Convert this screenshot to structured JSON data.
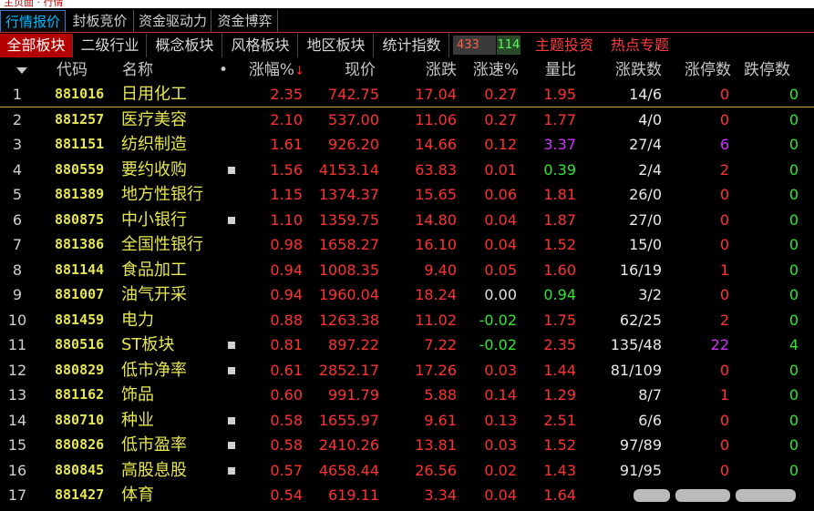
{
  "titlebar": {
    "text": "主页面 · 行情"
  },
  "top_tabs": [
    "行情报价",
    "封板竞价",
    "资金驱动力",
    "资金博弈"
  ],
  "sector_tabs": [
    "全部板块",
    "二级行业",
    "概念板块",
    "风格板块",
    "地区板块",
    "统计指数"
  ],
  "counter": {
    "up": "433",
    "down": "114"
  },
  "hot_tabs": [
    "主题投资",
    "热点专题"
  ],
  "columns": {
    "code": "代码",
    "name": "名称",
    "dot": "•",
    "pct": "涨幅%",
    "pct_arrow": "↓",
    "price": "现价",
    "change": "涨跌",
    "speed": "涨速%",
    "vol_ratio": "量比",
    "updown": "涨跌数",
    "limit_up": "涨停数",
    "limit_down": "跌停数"
  },
  "colors": {
    "up": "#ff3232",
    "down": "#32e632",
    "flat": "#e0e0e0",
    "highlight": "#d232ff",
    "name": "#e6e650",
    "active_tab": "#b40000"
  },
  "rows": [
    {
      "idx": "1",
      "code": "881016",
      "name": "日用化工",
      "dot": false,
      "pct": "2.35",
      "price": "742.75",
      "change": "17.04",
      "speed": "0.27",
      "vr": "1.95",
      "ud": "14/6",
      "zt": "0",
      "dt": "0",
      "speed_c": "red",
      "vr_c": "red",
      "zt_c": "red"
    },
    {
      "idx": "2",
      "code": "881257",
      "name": "医疗美容",
      "dot": false,
      "pct": "2.10",
      "price": "537.00",
      "change": "11.06",
      "speed": "0.27",
      "vr": "1.77",
      "ud": "4/0",
      "zt": "0",
      "dt": "0",
      "speed_c": "red",
      "vr_c": "red",
      "zt_c": "red"
    },
    {
      "idx": "3",
      "code": "881151",
      "name": "纺织制造",
      "dot": false,
      "pct": "1.61",
      "price": "926.20",
      "change": "14.66",
      "speed": "0.12",
      "vr": "3.37",
      "ud": "27/4",
      "zt": "6",
      "dt": "0",
      "speed_c": "red",
      "vr_c": "purple",
      "zt_c": "purple"
    },
    {
      "idx": "4",
      "code": "880559",
      "name": "要约收购",
      "dot": true,
      "pct": "1.56",
      "price": "4153.14",
      "change": "63.83",
      "speed": "0.01",
      "vr": "0.39",
      "ud": "2/4",
      "zt": "2",
      "dt": "0",
      "speed_c": "red",
      "vr_c": "green",
      "zt_c": "red"
    },
    {
      "idx": "5",
      "code": "881389",
      "name": "地方性银行",
      "dot": false,
      "pct": "1.15",
      "price": "1374.37",
      "change": "15.65",
      "speed": "0.06",
      "vr": "1.81",
      "ud": "26/0",
      "zt": "0",
      "dt": "0",
      "speed_c": "red",
      "vr_c": "red",
      "zt_c": "red"
    },
    {
      "idx": "6",
      "code": "880875",
      "name": "中小银行",
      "dot": true,
      "pct": "1.10",
      "price": "1359.75",
      "change": "14.80",
      "speed": "0.04",
      "vr": "1.87",
      "ud": "27/0",
      "zt": "0",
      "dt": "0",
      "speed_c": "red",
      "vr_c": "red",
      "zt_c": "red"
    },
    {
      "idx": "7",
      "code": "881386",
      "name": "全国性银行",
      "dot": false,
      "pct": "0.98",
      "price": "1658.27",
      "change": "16.10",
      "speed": "0.04",
      "vr": "1.52",
      "ud": "15/0",
      "zt": "0",
      "dt": "0",
      "speed_c": "red",
      "vr_c": "red",
      "zt_c": "red"
    },
    {
      "idx": "8",
      "code": "881144",
      "name": "食品加工",
      "dot": false,
      "pct": "0.94",
      "price": "1008.35",
      "change": "9.40",
      "speed": "0.05",
      "vr": "1.60",
      "ud": "16/19",
      "zt": "1",
      "dt": "0",
      "speed_c": "red",
      "vr_c": "red",
      "zt_c": "red"
    },
    {
      "idx": "9",
      "code": "881007",
      "name": "油气开采",
      "dot": false,
      "pct": "0.94",
      "price": "1960.04",
      "change": "18.24",
      "speed": "0.00",
      "vr": "0.94",
      "ud": "3/2",
      "zt": "0",
      "dt": "0",
      "speed_c": "white",
      "vr_c": "green",
      "zt_c": "red"
    },
    {
      "idx": "10",
      "code": "881459",
      "name": "电力",
      "dot": false,
      "pct": "0.88",
      "price": "1263.38",
      "change": "11.02",
      "speed": "-0.02",
      "vr": "1.75",
      "ud": "62/25",
      "zt": "2",
      "dt": "0",
      "speed_c": "green",
      "vr_c": "red",
      "zt_c": "red"
    },
    {
      "idx": "11",
      "code": "880516",
      "name": "ST板块",
      "dot": true,
      "pct": "0.81",
      "price": "897.22",
      "change": "7.22",
      "speed": "-0.02",
      "vr": "2.35",
      "ud": "135/48",
      "zt": "22",
      "dt": "4",
      "speed_c": "green",
      "vr_c": "red",
      "zt_c": "purple"
    },
    {
      "idx": "12",
      "code": "880829",
      "name": "低市净率",
      "dot": true,
      "pct": "0.61",
      "price": "2852.17",
      "change": "17.26",
      "speed": "0.03",
      "vr": "1.44",
      "ud": "81/109",
      "zt": "0",
      "dt": "0",
      "speed_c": "red",
      "vr_c": "red",
      "zt_c": "red"
    },
    {
      "idx": "13",
      "code": "881162",
      "name": "饰品",
      "dot": false,
      "pct": "0.60",
      "price": "991.79",
      "change": "5.88",
      "speed": "0.14",
      "vr": "1.29",
      "ud": "8/7",
      "zt": "1",
      "dt": "0",
      "speed_c": "red",
      "vr_c": "red",
      "zt_c": "red"
    },
    {
      "idx": "14",
      "code": "880710",
      "name": "种业",
      "dot": true,
      "pct": "0.58",
      "price": "1655.97",
      "change": "9.61",
      "speed": "0.13",
      "vr": "2.51",
      "ud": "6/6",
      "zt": "0",
      "dt": "0",
      "speed_c": "red",
      "vr_c": "red",
      "zt_c": "red"
    },
    {
      "idx": "15",
      "code": "880826",
      "name": "低市盈率",
      "dot": true,
      "pct": "0.58",
      "price": "2410.26",
      "change": "13.81",
      "speed": "0.03",
      "vr": "1.52",
      "ud": "97/89",
      "zt": "0",
      "dt": "0",
      "speed_c": "red",
      "vr_c": "red",
      "zt_c": "red"
    },
    {
      "idx": "16",
      "code": "880845",
      "name": "高股息股",
      "dot": true,
      "pct": "0.57",
      "price": "4658.44",
      "change": "26.56",
      "speed": "0.02",
      "vr": "1.43",
      "ud": "91/95",
      "zt": "0",
      "dt": "0",
      "speed_c": "red",
      "vr_c": "red",
      "zt_c": "red"
    },
    {
      "idx": "17",
      "code": "881427",
      "name": "体育",
      "dot": false,
      "pct": "0.54",
      "price": "619.11",
      "change": "3.34",
      "speed": "0.04",
      "vr": "1.64",
      "ud": "",
      "zt": "",
      "dt": "",
      "speed_c": "red",
      "vr_c": "red",
      "zt_c": "red"
    }
  ]
}
